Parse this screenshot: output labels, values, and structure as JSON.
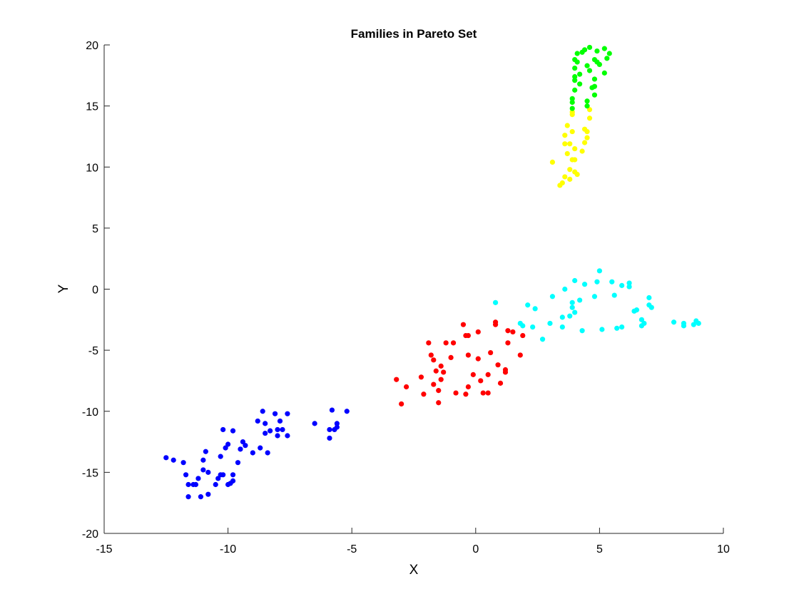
{
  "chart_data": {
    "type": "scatter",
    "title": "Families in Pareto Set",
    "xlabel": "X",
    "ylabel": "Y",
    "xlim": [
      -15,
      10
    ],
    "ylim": [
      -20,
      20
    ],
    "xticks": [
      -15,
      -10,
      -5,
      0,
      5,
      10
    ],
    "yticks": [
      -20,
      -15,
      -10,
      -5,
      0,
      5,
      10,
      15,
      20
    ],
    "xtick_labels": [
      "-15",
      "-10",
      "-5",
      "0",
      "5",
      "10"
    ],
    "ytick_labels": [
      "-20",
      "-15",
      "-10",
      "-5",
      "0",
      "5",
      "10",
      "15",
      "20"
    ],
    "grid": false,
    "legend": "none",
    "series": [
      {
        "color": "#0000ff",
        "points": [
          [
            -12.5,
            -13.8
          ],
          [
            -12.2,
            -14.0
          ],
          [
            -11.8,
            -14.2
          ],
          [
            -11.7,
            -15.2
          ],
          [
            -11.6,
            -16.0
          ],
          [
            -11.4,
            -16.0
          ],
          [
            -11.6,
            -17.0
          ],
          [
            -11.3,
            -16.0
          ],
          [
            -11.2,
            -15.5
          ],
          [
            -11.1,
            -17.0
          ],
          [
            -11.0,
            -14.0
          ],
          [
            -11.0,
            -14.8
          ],
          [
            -10.9,
            -13.3
          ],
          [
            -10.8,
            -15.0
          ],
          [
            -10.8,
            -16.8
          ],
          [
            -10.5,
            -16.0
          ],
          [
            -10.4,
            -15.5
          ],
          [
            -10.3,
            -15.2
          ],
          [
            -10.2,
            -15.2
          ],
          [
            -10.3,
            -13.7
          ],
          [
            -10.2,
            -11.5
          ],
          [
            -10.1,
            -13.0
          ],
          [
            -10.0,
            -12.7
          ],
          [
            -10.0,
            -16.0
          ],
          [
            -9.9,
            -15.9
          ],
          [
            -9.8,
            -15.2
          ],
          [
            -9.8,
            -15.7
          ],
          [
            -9.8,
            -11.6
          ],
          [
            -9.6,
            -14.2
          ],
          [
            -9.5,
            -13.1
          ],
          [
            -9.4,
            -12.5
          ],
          [
            -9.3,
            -12.8
          ],
          [
            -9.0,
            -13.4
          ],
          [
            -8.8,
            -10.8
          ],
          [
            -8.7,
            -13.0
          ],
          [
            -8.6,
            -10.0
          ],
          [
            -8.5,
            -11.0
          ],
          [
            -8.5,
            -11.8
          ],
          [
            -8.4,
            -13.4
          ],
          [
            -8.3,
            -11.6
          ],
          [
            -8.1,
            -10.2
          ],
          [
            -8.0,
            -12.0
          ],
          [
            -8.0,
            -11.5
          ],
          [
            -7.9,
            -10.8
          ],
          [
            -7.8,
            -11.5
          ],
          [
            -7.6,
            -10.2
          ],
          [
            -7.6,
            -12.0
          ],
          [
            -6.5,
            -11.0
          ],
          [
            -5.9,
            -11.5
          ],
          [
            -5.9,
            -12.2
          ],
          [
            -5.8,
            -9.9
          ],
          [
            -5.7,
            -11.5
          ],
          [
            -5.6,
            -11.3
          ],
          [
            -5.6,
            -11.0
          ],
          [
            -5.2,
            -10.0
          ]
        ]
      },
      {
        "color": "#ff0000",
        "points": [
          [
            -3.2,
            -7.4
          ],
          [
            -3.0,
            -9.4
          ],
          [
            -2.8,
            -8.0
          ],
          [
            -2.2,
            -7.2
          ],
          [
            -2.1,
            -8.6
          ],
          [
            -1.9,
            -4.4
          ],
          [
            -1.8,
            -5.4
          ],
          [
            -1.7,
            -7.8
          ],
          [
            -1.7,
            -5.8
          ],
          [
            -1.6,
            -6.7
          ],
          [
            -1.5,
            -8.3
          ],
          [
            -1.5,
            -9.3
          ],
          [
            -1.4,
            -7.4
          ],
          [
            -1.4,
            -6.3
          ],
          [
            -1.3,
            -6.8
          ],
          [
            -1.2,
            -4.4
          ],
          [
            -1.0,
            -5.6
          ],
          [
            -0.9,
            -4.4
          ],
          [
            -0.8,
            -8.5
          ],
          [
            -0.5,
            -2.9
          ],
          [
            -0.4,
            -3.8
          ],
          [
            -0.4,
            -8.6
          ],
          [
            -0.3,
            -3.8
          ],
          [
            -0.3,
            -5.4
          ],
          [
            -0.3,
            -8.0
          ],
          [
            -0.1,
            -7.0
          ],
          [
            0.1,
            -3.5
          ],
          [
            0.1,
            -5.7
          ],
          [
            0.2,
            -7.5
          ],
          [
            0.3,
            -8.5
          ],
          [
            0.5,
            -7.0
          ],
          [
            0.5,
            -8.5
          ],
          [
            0.6,
            -5.2
          ],
          [
            0.8,
            -2.7
          ],
          [
            0.8,
            -2.9
          ],
          [
            0.9,
            -6.2
          ],
          [
            1.0,
            -7.7
          ],
          [
            1.2,
            -6.6
          ],
          [
            1.2,
            -6.8
          ],
          [
            1.3,
            -3.4
          ],
          [
            1.3,
            -4.4
          ],
          [
            1.5,
            -3.5
          ],
          [
            1.8,
            -5.4
          ],
          [
            1.9,
            -3.8
          ]
        ]
      },
      {
        "color": "#00ffff",
        "points": [
          [
            0.8,
            -1.1
          ],
          [
            1.8,
            -2.8
          ],
          [
            1.9,
            -3.0
          ],
          [
            2.1,
            -1.3
          ],
          [
            2.4,
            -1.6
          ],
          [
            2.3,
            -3.1
          ],
          [
            2.7,
            -4.1
          ],
          [
            3.0,
            -2.8
          ],
          [
            3.1,
            -0.6
          ],
          [
            3.5,
            -3.1
          ],
          [
            3.5,
            -2.3
          ],
          [
            3.6,
            0.0
          ],
          [
            3.8,
            -2.2
          ],
          [
            3.9,
            -1.1
          ],
          [
            3.9,
            -1.5
          ],
          [
            4.0,
            0.7
          ],
          [
            4.0,
            -1.9
          ],
          [
            4.2,
            -0.9
          ],
          [
            4.3,
            -3.4
          ],
          [
            4.4,
            0.4
          ],
          [
            4.8,
            -0.6
          ],
          [
            4.9,
            0.6
          ],
          [
            5.0,
            1.5
          ],
          [
            5.1,
            -3.3
          ],
          [
            5.5,
            0.6
          ],
          [
            5.6,
            -0.5
          ],
          [
            5.7,
            -3.2
          ],
          [
            5.9,
            -3.1
          ],
          [
            5.9,
            0.3
          ],
          [
            6.2,
            0.5
          ],
          [
            6.2,
            0.2
          ],
          [
            6.4,
            -1.8
          ],
          [
            6.5,
            -1.7
          ],
          [
            6.7,
            -2.5
          ],
          [
            6.7,
            -3.0
          ],
          [
            6.8,
            -2.8
          ],
          [
            7.0,
            -0.7
          ],
          [
            7.0,
            -1.3
          ],
          [
            7.1,
            -1.5
          ],
          [
            8.0,
            -2.7
          ],
          [
            8.4,
            -3.0
          ],
          [
            8.4,
            -2.8
          ],
          [
            8.8,
            -2.9
          ],
          [
            8.9,
            -2.6
          ],
          [
            9.0,
            -2.8
          ]
        ]
      },
      {
        "color": "#ffff00",
        "points": [
          [
            3.1,
            10.4
          ],
          [
            3.4,
            8.5
          ],
          [
            3.5,
            8.7
          ],
          [
            3.6,
            9.2
          ],
          [
            3.6,
            11.9
          ],
          [
            3.6,
            12.6
          ],
          [
            3.7,
            11.1
          ],
          [
            3.7,
            13.4
          ],
          [
            3.8,
            9.8
          ],
          [
            3.8,
            11.9
          ],
          [
            3.8,
            9.0
          ],
          [
            3.9,
            14.3
          ],
          [
            3.9,
            14.5
          ],
          [
            3.9,
            12.9
          ],
          [
            3.9,
            10.6
          ],
          [
            4.0,
            9.6
          ],
          [
            4.0,
            11.5
          ],
          [
            4.0,
            10.6
          ],
          [
            4.1,
            9.4
          ],
          [
            4.3,
            11.3
          ],
          [
            4.4,
            12.0
          ],
          [
            4.4,
            13.1
          ],
          [
            4.5,
            12.4
          ],
          [
            4.5,
            12.9
          ],
          [
            4.6,
            14.0
          ],
          [
            4.6,
            14.7
          ]
        ]
      },
      {
        "color": "#00ff00",
        "points": [
          [
            3.9,
            14.8
          ],
          [
            3.9,
            15.3
          ],
          [
            3.9,
            15.6
          ],
          [
            4.0,
            16.3
          ],
          [
            4.0,
            17.1
          ],
          [
            4.0,
            17.4
          ],
          [
            4.0,
            18.1
          ],
          [
            4.0,
            18.8
          ],
          [
            4.1,
            19.3
          ],
          [
            4.1,
            18.6
          ],
          [
            4.2,
            17.6
          ],
          [
            4.2,
            16.8
          ],
          [
            4.3,
            19.4
          ],
          [
            4.4,
            19.6
          ],
          [
            4.5,
            18.3
          ],
          [
            4.5,
            15.4
          ],
          [
            4.5,
            15.0
          ],
          [
            4.6,
            19.8
          ],
          [
            4.6,
            17.9
          ],
          [
            4.7,
            16.5
          ],
          [
            4.8,
            17.2
          ],
          [
            4.8,
            16.6
          ],
          [
            4.8,
            15.9
          ],
          [
            4.8,
            18.8
          ],
          [
            4.9,
            18.6
          ],
          [
            4.9,
            19.5
          ],
          [
            5.0,
            18.4
          ],
          [
            5.2,
            17.7
          ],
          [
            5.2,
            19.7
          ],
          [
            5.3,
            18.9
          ],
          [
            5.4,
            19.3
          ]
        ]
      }
    ]
  }
}
